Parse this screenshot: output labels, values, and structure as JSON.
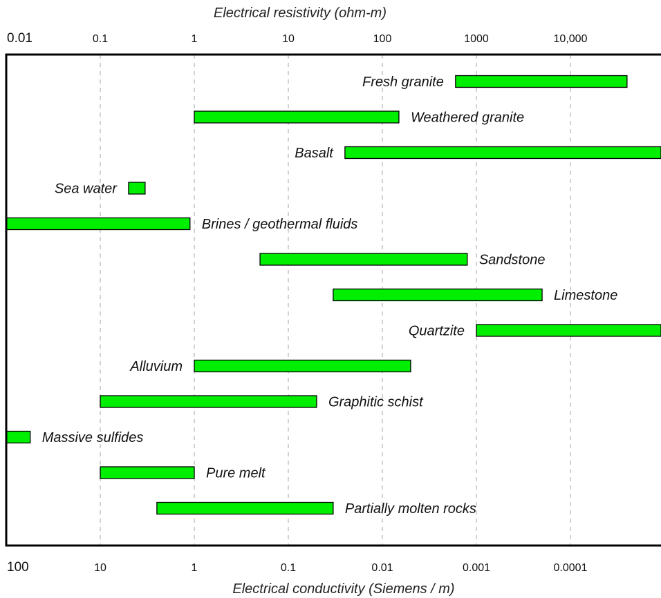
{
  "chart_data": {
    "type": "bar",
    "orientation": "horizontal-range",
    "top_axis": {
      "label": "Electrical resistivity (ohm-m)",
      "scale": "log",
      "range": [
        0.01,
        100000
      ],
      "ticks": [
        {
          "value": 0.01,
          "label": "0.01"
        },
        {
          "value": 0.1,
          "label": "0.1"
        },
        {
          "value": 1,
          "label": "1"
        },
        {
          "value": 10,
          "label": "10"
        },
        {
          "value": 100,
          "label": "100"
        },
        {
          "value": 1000,
          "label": "1000"
        },
        {
          "value": 10000,
          "label": "10,000"
        }
      ]
    },
    "bottom_axis": {
      "label": "Electrical conductivity (Siemens / m)",
      "scale": "log",
      "range": [
        100,
        1e-05
      ],
      "ticks": [
        {
          "value": 100,
          "label": "100"
        },
        {
          "value": 10,
          "label": "10"
        },
        {
          "value": 1,
          "label": "1"
        },
        {
          "value": 0.1,
          "label": "0.1"
        },
        {
          "value": 0.01,
          "label": "0.01"
        },
        {
          "value": 0.001,
          "label": "0.001"
        },
        {
          "value": 0.0001,
          "label": "0.0001"
        }
      ]
    },
    "grid": "vertical dashed",
    "bar_color": "#00ee00",
    "series": [
      {
        "label": "Fresh granite",
        "min": 600,
        "max": 40000,
        "label_side": "left"
      },
      {
        "label": "Weathered granite",
        "min": 1,
        "max": 150,
        "label_side": "right"
      },
      {
        "label": "Basalt",
        "min": 40,
        "max": 100000,
        "label_side": "left"
      },
      {
        "label": "Sea water",
        "min": 0.2,
        "max": 0.3,
        "label_side": "left"
      },
      {
        "label": "Brines / geothermal fluids",
        "min": 0.01,
        "max": 0.9,
        "label_side": "right"
      },
      {
        "label": "Sandstone",
        "min": 5,
        "max": 800,
        "label_side": "right"
      },
      {
        "label": "Limestone",
        "min": 30,
        "max": 5000,
        "label_side": "right"
      },
      {
        "label": "Quartzite",
        "min": 1000,
        "max": 100000,
        "label_side": "left"
      },
      {
        "label": "Alluvium",
        "min": 1,
        "max": 200,
        "label_side": "left"
      },
      {
        "label": "Graphitic schist",
        "min": 0.1,
        "max": 20,
        "label_side": "right"
      },
      {
        "label": "Massive sulfides",
        "min": 0.01,
        "max": 0.018,
        "label_side": "right"
      },
      {
        "label": "Pure melt",
        "min": 0.1,
        "max": 1,
        "label_side": "right"
      },
      {
        "label": "Partially molten rocks",
        "min": 0.4,
        "max": 30,
        "label_side": "right"
      }
    ]
  }
}
